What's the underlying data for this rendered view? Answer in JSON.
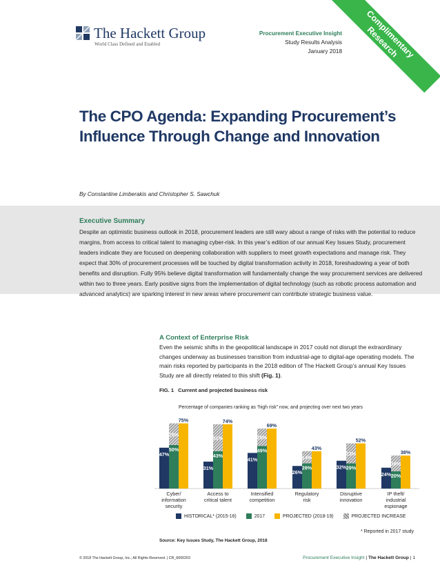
{
  "brand": {
    "name": "The Hackett Group",
    "tagline": "World Class Defined and Enabled",
    "green": "#2e7d5b",
    "navy": "#1f3864",
    "gold": "#f7b500",
    "ribbon": "#39b54a"
  },
  "publication": {
    "series": "Procurement Executive Insight",
    "type": "Study Results Analysis",
    "date": "January 2018"
  },
  "ribbon": {
    "line1": "Complimentary",
    "line2": "Research"
  },
  "title_line1": "The CPO Agenda: Expanding Procurement’s",
  "title_line2": "Influence Through Change and Innovation",
  "authors": "By Constantine Limberakis and Christopher S. Sawchuk",
  "executive_summary": {
    "heading": "Executive Summary",
    "body": "Despite an optimistic business outlook in 2018, procurement leaders are still wary about a range of risks with the potential to reduce margins, from access to critical talent to managing cyber-risk. In this year’s edition of our annual Key Issues Study, procurement leaders indicate they are focused on deepening collaboration with suppliers to meet growth expectations and manage risk. They expect that 30% of procurement processes will be touched by digital transformation activity in 2018, foreshadowing a year of both benefits and disruption. Fully 95% believe digital transformation will fundamentally change the way procurement services are delivered within two to three years. Early positive signs from the implementation of digital technology (such as robotic process automation and advanced analytics) are sparking interest in new areas where procurement can contribute strategic business value."
  },
  "context": {
    "heading": "A Context of Enterprise Risk",
    "body": "Even the seismic shifts in the geopolitical landscape in 2017 could not disrupt the extraordinary changes underway as businesses transition from industrial-age to digital-age operating models. The main risks reported by participants in the 2018 edition of The Hackett Group’s annual Key Issues Study are all directly related to this shift",
    "fig_ref": "(Fig. 1)",
    "tail": "."
  },
  "figure": {
    "label": "FIG. 1",
    "title": "Current and projected business risk",
    "subtitle": "Percentage of companies ranking as “high risk” now, and projecting over next two years",
    "source": "Source: Key Issues Study, The Hackett Group, 2018",
    "note": "* Reported in 2017 study"
  },
  "legend": {
    "historical": "HISTORICAL* (2015-16)",
    "current": "2017",
    "projected": "PROJECTED (2018-19)",
    "increase": "PROJECTED INCREASE"
  },
  "chart_data": {
    "type": "bar",
    "ylim": [
      0,
      80
    ],
    "grid": false,
    "legend_position": "bottom",
    "categories": [
      [
        "Cyber/",
        "information",
        "security"
      ],
      [
        "Access to",
        "critical talent"
      ],
      [
        "Intensified",
        "competition"
      ],
      [
        "Regulatory",
        "risk"
      ],
      [
        "Disruptive",
        "innovation"
      ],
      [
        "IP theft/",
        "industrial",
        "espionage"
      ]
    ],
    "series": [
      {
        "name": "HISTORICAL* (2015-16)",
        "color": "#1f3864",
        "values": [
          47,
          31,
          41,
          26,
          32,
          24
        ],
        "labels": [
          "47%",
          "31%",
          "41%",
          "26%",
          "32%",
          "24%"
        ]
      },
      {
        "name": "2017",
        "color": "#2e7d5b",
        "values": [
          50,
          43,
          49,
          29,
          29,
          20
        ],
        "labels": [
          "50%",
          "43%",
          "49%",
          "29%",
          "29%",
          "20%"
        ]
      },
      {
        "name": "PROJECTED (2018-19)",
        "color": "#f7b500",
        "values": [
          75,
          74,
          69,
          43,
          52,
          38
        ],
        "labels": [
          "75%",
          "74%",
          "69%",
          "43%",
          "52%",
          "38%"
        ]
      }
    ],
    "projected_increase": {
      "name": "PROJECTED INCREASE",
      "values": [
        25,
        31,
        20,
        14,
        23,
        18
      ],
      "labels": [
        "25%",
        "31%",
        "20%",
        "14%",
        "23%",
        "18%"
      ]
    }
  },
  "footer": {
    "copyright": "© 2018 The Hackett Group, Inc.; All Rights Reserved. | CR_6000203",
    "series": "Procurement Executive Insight",
    "company": "The Hackett Group",
    "page": "1"
  }
}
